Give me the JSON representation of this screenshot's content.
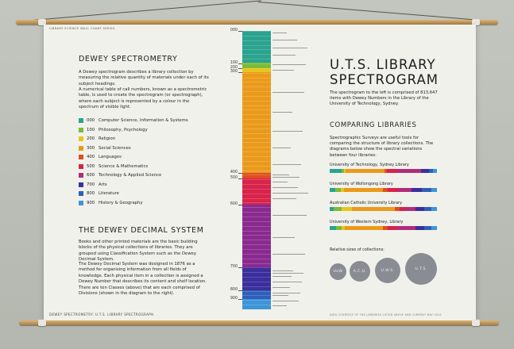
{
  "poster": {
    "series_title": "LIBRARY SCIENCE WALL CHART SERIES",
    "footer_left": "DEWEY SPECTROMETRY: U.T.S. LIBRARY SPECTROGRAPH",
    "footer_right": "DATA COURTESY OF THE LIBRARIES LISTED ABOVE AND CURRENT MAY 2012"
  },
  "left": {
    "title": "DEWEY SPECTROMETRY",
    "intro_1": "A Dewey spectrogram describes a library collection by measuring the relative quantity of materials under each of its subject headings.",
    "intro_2": "A numerical table of call numbers, known as a spectrometric table, is used to create the spectrogram (or spectrograph), where each subject is represented by a colour in the spectrum of visible light.",
    "legend": [
      {
        "code": "000",
        "name": "Computer Science, Information & Systems",
        "color": "#2aa38f"
      },
      {
        "code": "100",
        "name": "Philosophy, Psychology",
        "color": "#7dba3b"
      },
      {
        "code": "200",
        "name": "Religion",
        "color": "#e8c619"
      },
      {
        "code": "300",
        "name": "Social Sciences",
        "color": "#ea9a1b"
      },
      {
        "code": "400",
        "name": "Languages",
        "color": "#df4d22"
      },
      {
        "code": "500",
        "name": "Science & Mathematics",
        "color": "#d8234a"
      },
      {
        "code": "600",
        "name": "Technology & Applied Science",
        "color": "#b02d79"
      },
      {
        "code": "700",
        "name": "Arts",
        "color": "#3b2f9c"
      },
      {
        "code": "800",
        "name": "Literature",
        "color": "#2f5fb8"
      },
      {
        "code": "900",
        "name": "History & Geography",
        "color": "#3e95d8"
      }
    ],
    "ddc_title": "THE DEWEY DECIMAL SYSTEM",
    "ddc_1": "Books and other printed materials are the basic building blocks of the physical collections of libraries. They are grouped using Classification System such as the Dewey Decimal System.",
    "ddc_2": "The Dewey Decimal System was designed in 1876 as a method for organising information from all fields of knowledge. Each physical item in a collection is assigned a Dewey Number that describes its content and shelf location. There are ten Classes (above) that are each comprised of Divisions (shown in the diagram to the right)."
  },
  "spectrum": {
    "bands": [
      {
        "frac": 0.115,
        "color": "#2aa38f"
      },
      {
        "frac": 0.02,
        "color": "#7dba3b"
      },
      {
        "frac": 0.013,
        "color": "#e8c619"
      },
      {
        "frac": 0.362,
        "color": "#ea9a1b"
      },
      {
        "frac": 0.02,
        "color": "#df4d22"
      },
      {
        "frac": 0.095,
        "color": "#d8234a"
      },
      {
        "frac": 0.224,
        "color": "#8a2a8f"
      },
      {
        "frac": 0.084,
        "color": "#3b2f9c"
      },
      {
        "frac": 0.031,
        "color": "#2f5fb8"
      },
      {
        "frac": 0.036,
        "color": "#3e95d8"
      }
    ],
    "ticks": [
      {
        "label": "000",
        "pos": 0.0
      },
      {
        "label": "100",
        "pos": 0.117
      },
      {
        "label": "200",
        "pos": 0.135
      },
      {
        "label": "300",
        "pos": 0.148
      },
      {
        "label": "400",
        "pos": 0.51
      },
      {
        "label": "500",
        "pos": 0.53
      },
      {
        "label": "600",
        "pos": 0.625
      },
      {
        "label": "700",
        "pos": 0.849
      },
      {
        "label": "800",
        "pos": 0.933
      },
      {
        "label": "900",
        "pos": 0.964
      }
    ]
  },
  "right": {
    "title_line1": "U.T.S. LIBRARY",
    "title_line2": "SPECTROGRAM",
    "intro": "The spectrogram to the left is comprised of 813,647 items with Dewey Numbers in the Library of the University of Technology, Sydney.",
    "compare_title": "COMPARING LIBRARIES",
    "compare_intro": "Spectrographic Surveys are useful tools for comparing the structure of library collections. The diagrams below show the spectral variations between four libraries:",
    "libraries": [
      {
        "name": "University of Technology, Sydney Library",
        "fracs": [
          0.11,
          0.02,
          0.02,
          0.36,
          0.02,
          0.1,
          0.22,
          0.08,
          0.03,
          0.04
        ]
      },
      {
        "name": "University of Wollongong Library",
        "fracs": [
          0.05,
          0.05,
          0.03,
          0.37,
          0.04,
          0.1,
          0.12,
          0.1,
          0.09,
          0.05
        ]
      },
      {
        "name": "Australian Catholic University Library",
        "fracs": [
          0.04,
          0.07,
          0.1,
          0.4,
          0.04,
          0.05,
          0.1,
          0.08,
          0.07,
          0.05
        ]
      },
      {
        "name": "University of Western Sydney, Library",
        "fracs": [
          0.06,
          0.05,
          0.03,
          0.36,
          0.04,
          0.09,
          0.17,
          0.08,
          0.07,
          0.05
        ]
      }
    ],
    "sizes_label": "Relative sizes of collections:",
    "circles": [
      "UoW",
      "A.C.U.",
      "U.W.S.",
      "U.T.S."
    ]
  }
}
